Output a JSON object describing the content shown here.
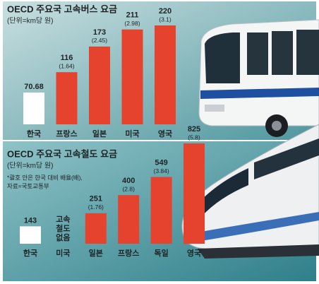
{
  "chart_data": [
    {
      "type": "bar",
      "title": "OECD 주요국 고속버스 요금",
      "subtitle": "(단위=km당 원)",
      "categories": [
        "한국",
        "프랑스",
        "일본",
        "미국",
        "영국"
      ],
      "values": [
        70.68,
        116,
        173,
        211,
        220
      ],
      "ratio_labels": [
        null,
        "(1.64)",
        "(2.45)",
        "(2.98)",
        "(3.1)"
      ],
      "colors": [
        "#ffffff",
        "#e5432d",
        "#e5432d",
        "#e5432d",
        "#e5432d"
      ]
    },
    {
      "type": "bar",
      "title": "OECD 주요국 고속철도 요금",
      "subtitle": "(단위=km당 원)",
      "notes": [
        "*괄호 안은 한국 대비 배율(배),",
        "자료=국토교통부"
      ],
      "categories": [
        "한국",
        "미국",
        "일본",
        "프랑스",
        "독일",
        "영국"
      ],
      "values": [
        143,
        null,
        251,
        400,
        549,
        825
      ],
      "ratio_labels": [
        null,
        null,
        "(1.76)",
        "(2.8)",
        "(3.84)",
        "(5.8)"
      ],
      "no_data_label": [
        "고속",
        "철도",
        "없음"
      ],
      "colors": [
        "#ffffff",
        "#e5432d",
        "#e5432d",
        "#e5432d",
        "#e5432d",
        "#e5432d"
      ]
    }
  ]
}
